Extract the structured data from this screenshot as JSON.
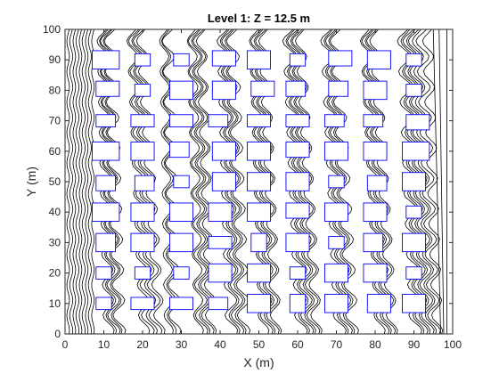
{
  "chart_data": {
    "type": "line",
    "title": "Level 1: Z = 12.5 m",
    "xlabel": "X (m)",
    "ylabel": "Y (m)",
    "xlim": [
      0,
      100
    ],
    "ylim": [
      0,
      100
    ],
    "xticks": [
      0,
      10,
      20,
      30,
      40,
      50,
      60,
      70,
      80,
      90,
      100
    ],
    "yticks": [
      0,
      10,
      20,
      30,
      40,
      50,
      60,
      70,
      80,
      90,
      100
    ],
    "grid": false,
    "colors": {
      "streamlines": "#000000",
      "obstacles": "#0000ff",
      "axes": "#262626"
    },
    "series": [
      {
        "role": "streamlines",
        "x_start": [
          0.8,
          1.6,
          2.4,
          3.2,
          4.0,
          4.8,
          5.6,
          6.4,
          7.2,
          11.3,
          12.0,
          12.7,
          13.4,
          14.1,
          20.5,
          21.5,
          22.5,
          23.5,
          24.5,
          26.8,
          27.6,
          28.4,
          34.5,
          35.3,
          36.1,
          36.9,
          37.7,
          43.0,
          43.8,
          44.6,
          45.4,
          46.2,
          51.3,
          52.1,
          52.9,
          53.7,
          54.5,
          61.0,
          61.8,
          62.6,
          63.4,
          64.2,
          65.0,
          71.0,
          71.8,
          72.6,
          73.4,
          74.2,
          81.3,
          82.1,
          82.9,
          83.7,
          84.5,
          90.5,
          91.3,
          92.1,
          92.9,
          93.7,
          94.5,
          95.3,
          96.1,
          96.9,
          97.7,
          98.5
        ],
        "x_end": [
          0.8,
          1.6,
          2.4,
          3.2,
          4.0,
          4.8,
          5.6,
          6.4,
          7.2,
          9.6,
          10.1,
          10.6,
          11.1,
          11.6,
          17.2,
          17.8,
          18.4,
          19.0,
          19.6,
          25.5,
          26.0,
          26.5,
          32.7,
          33.3,
          33.9,
          34.5,
          35.1,
          40.7,
          41.3,
          41.9,
          42.5,
          43.1,
          48.8,
          49.4,
          50.0,
          50.6,
          51.2,
          57.6,
          58.2,
          58.8,
          59.4,
          60.0,
          60.6,
          67.4,
          68.0,
          68.6,
          69.2,
          69.8,
          77.4,
          78.0,
          78.6,
          79.2,
          79.8,
          87.2,
          87.9,
          88.6,
          89.3,
          90.0,
          90.8,
          92.0,
          93.5,
          95.0,
          96.5,
          98.5
        ]
      },
      {
        "role": "obstacles",
        "rects": [
          [
            7,
            87,
            7,
            6
          ],
          [
            18,
            88,
            4,
            4
          ],
          [
            28,
            88,
            4,
            4
          ],
          [
            38,
            88,
            6,
            5
          ],
          [
            47,
            87,
            6,
            6
          ],
          [
            58,
            88,
            4,
            4
          ],
          [
            68,
            88,
            6,
            5
          ],
          [
            78,
            87,
            6,
            6
          ],
          [
            88,
            88,
            4,
            4
          ],
          [
            8,
            78,
            6,
            5
          ],
          [
            18,
            78,
            4,
            4
          ],
          [
            27,
            77,
            6,
            6
          ],
          [
            38,
            77,
            6,
            6
          ],
          [
            48,
            78,
            6,
            5
          ],
          [
            57,
            78,
            5,
            5
          ],
          [
            68,
            78,
            5,
            5
          ],
          [
            77,
            77,
            6,
            6
          ],
          [
            88,
            78,
            4,
            4
          ],
          [
            8,
            68,
            5,
            4
          ],
          [
            17,
            68,
            6,
            4
          ],
          [
            27,
            68,
            6,
            4
          ],
          [
            37,
            68,
            5,
            4
          ],
          [
            47,
            68,
            6,
            4
          ],
          [
            57,
            68,
            6,
            4
          ],
          [
            67,
            68,
            5,
            4
          ],
          [
            77,
            68,
            5,
            4
          ],
          [
            88,
            67,
            6,
            5
          ],
          [
            7,
            57,
            7,
            6
          ],
          [
            17,
            57,
            6,
            6
          ],
          [
            27,
            58,
            5,
            5
          ],
          [
            38,
            57,
            6,
            6
          ],
          [
            47,
            57,
            6,
            6
          ],
          [
            57,
            58,
            6,
            5
          ],
          [
            67,
            57,
            6,
            6
          ],
          [
            77,
            57,
            6,
            6
          ],
          [
            87,
            57,
            7,
            6
          ],
          [
            8,
            47,
            5,
            5
          ],
          [
            18,
            47,
            5,
            5
          ],
          [
            28,
            48,
            4,
            4
          ],
          [
            38,
            47,
            6,
            6
          ],
          [
            47,
            47,
            6,
            6
          ],
          [
            57,
            47,
            6,
            6
          ],
          [
            68,
            48,
            4,
            4
          ],
          [
            78,
            47,
            5,
            5
          ],
          [
            87,
            47,
            6,
            6
          ],
          [
            7,
            37,
            7,
            6
          ],
          [
            17,
            37,
            6,
            6
          ],
          [
            27,
            37,
            6,
            6
          ],
          [
            37,
            37,
            6,
            6
          ],
          [
            47,
            37,
            6,
            6
          ],
          [
            57,
            38,
            6,
            5
          ],
          [
            67,
            37,
            6,
            6
          ],
          [
            77,
            37,
            6,
            6
          ],
          [
            88,
            38,
            4,
            4
          ],
          [
            8,
            27,
            5,
            6
          ],
          [
            17,
            27,
            6,
            6
          ],
          [
            27,
            27,
            6,
            6
          ],
          [
            37,
            28,
            6,
            4
          ],
          [
            48,
            27,
            4,
            6
          ],
          [
            57,
            27,
            6,
            6
          ],
          [
            68,
            28,
            4,
            4
          ],
          [
            77,
            27,
            5,
            6
          ],
          [
            87,
            27,
            6,
            6
          ],
          [
            8,
            18,
            4,
            4
          ],
          [
            18,
            18,
            4,
            4
          ],
          [
            28,
            18,
            4,
            4
          ],
          [
            37,
            17,
            6,
            6
          ],
          [
            47,
            17,
            6,
            6
          ],
          [
            58,
            18,
            4,
            4
          ],
          [
            67,
            17,
            6,
            6
          ],
          [
            77,
            17,
            6,
            6
          ],
          [
            88,
            18,
            4,
            4
          ],
          [
            8,
            8,
            4,
            4
          ],
          [
            17,
            8,
            6,
            4
          ],
          [
            27,
            8,
            6,
            4
          ],
          [
            37,
            8,
            5,
            4
          ],
          [
            47,
            7,
            6,
            6
          ],
          [
            58,
            7,
            4,
            6
          ],
          [
            67,
            7,
            6,
            6
          ],
          [
            78,
            7,
            6,
            6
          ],
          [
            87,
            7,
            6,
            6
          ]
        ]
      }
    ]
  }
}
